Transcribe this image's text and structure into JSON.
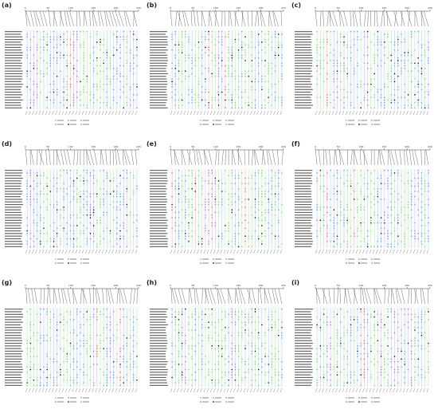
{
  "figure": {
    "panels": [
      {
        "label": "(a)",
        "axis_ticks": [
          "0",
          "50",
          "100",
          "150",
          "200",
          "226"
        ]
      },
      {
        "label": "(b)",
        "axis_ticks": [
          "0",
          "50",
          "100",
          "150",
          "200",
          "213"
        ]
      },
      {
        "label": "(c)",
        "axis_ticks": [
          "0",
          "50",
          "100",
          "150",
          "200",
          "226"
        ]
      },
      {
        "label": "(d)",
        "axis_ticks": [
          "0",
          "50",
          "100",
          "150",
          "200",
          "226"
        ]
      },
      {
        "label": "(e)",
        "axis_ticks": [
          "0",
          "50",
          "100",
          "150",
          "200",
          "226"
        ]
      },
      {
        "label": "(f)",
        "axis_ticks": [
          "0",
          "50",
          "100",
          "150",
          "200",
          "226"
        ]
      },
      {
        "label": "(g)",
        "axis_ticks": [
          "0",
          "50",
          "100",
          "150",
          "200",
          "226"
        ]
      },
      {
        "label": "(h)",
        "axis_ticks": [
          "0",
          "50",
          "100",
          "150",
          "200",
          "226"
        ]
      },
      {
        "label": "(i)",
        "axis_ticks": [
          "0",
          "50",
          "100",
          "150",
          "200",
          "226"
        ]
      }
    ]
  },
  "colors": {
    "text": "#333333",
    "grid": "#e0e0e0",
    "green": "#7fd37f",
    "blue": "#6aa0e8",
    "purple": "#a87fe0",
    "red": "#e07070",
    "black": "#111111"
  }
}
